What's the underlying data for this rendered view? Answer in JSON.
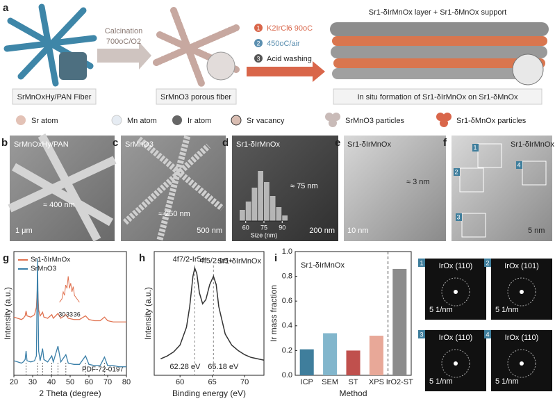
{
  "panel_letters": [
    "a",
    "b",
    "c",
    "d",
    "e",
    "f",
    "g",
    "h",
    "i"
  ],
  "schematic": {
    "step1_caption": "SrMnOxHy/PAN Fiber",
    "calcination": "Calcination",
    "calcination_condition": "700oC/O2",
    "step2_caption": "SrMnO3 porous fiber",
    "steps": [
      {
        "number": "1",
        "text": "K2IrCl6 90oC"
      },
      {
        "number": "2",
        "text": "450oC/air"
      },
      {
        "number": "3",
        "text": "Acid washing"
      }
    ],
    "product_title": "Sr1-δIrMnOx layer + Sr1-δMnOx support",
    "step3_caption": "In situ formation of Sr1-δIrMnOx on Sr1-δMnOx",
    "legend": [
      "Sr atom",
      "Mn atom",
      "Ir atom",
      "Sr vacancy",
      "SrMnO3 particles",
      "Sr1-δMnOx particles"
    ]
  },
  "micrographs": [
    {
      "sample": "SrMnOxHy/PAN",
      "size": "≈ 400 nm",
      "scale": "1 μm"
    },
    {
      "sample": "SrMnO3",
      "size": "≈ 250 nm",
      "scale": "500 nm"
    },
    {
      "sample": "Sr1-δIrMnOx",
      "size": "≈ 75 nm",
      "scale": "200 nm"
    },
    {
      "sample": "Sr1-δIrMnOx",
      "size": "≈ 3 nm",
      "scale": "10 nm"
    },
    {
      "sample": "Sr1-δIrMnOx",
      "scale": "5 nm",
      "regions": [
        "1",
        "2",
        "3",
        "4"
      ]
    }
  ],
  "fft": [
    {
      "number": "1",
      "plane": "IrOx (110)",
      "scale": "5 1/nm"
    },
    {
      "number": "2",
      "plane": "IrOx (101)",
      "scale": "5 1/nm"
    },
    {
      "number": "3",
      "plane": "IrOx (110)",
      "scale": "5 1/nm"
    },
    {
      "number": "4",
      "plane": "IrOx (110)",
      "scale": "5 1/nm"
    }
  ],
  "chart_data": [
    {
      "type": "histogram",
      "xlabel": "Size (nm)",
      "bins": [
        55,
        60,
        65,
        70,
        75,
        80,
        85,
        90,
        95
      ],
      "values": [
        0.2,
        0.35,
        0.6,
        0.9,
        0.7,
        0.45,
        0.25,
        0.1
      ],
      "xlim": [
        55,
        95
      ],
      "xticks": [
        60,
        75,
        90
      ],
      "ylim": [
        0,
        1
      ],
      "color": "#dcdcdc"
    },
    {
      "type": "line",
      "xlabel": "2 Theta (degree)",
      "ylabel": "Intensity (a.u.)",
      "xlim": [
        20,
        80
      ],
      "xticks": [
        20,
        30,
        40,
        50,
        60,
        70,
        80
      ],
      "ylim": [
        0,
        10.2
      ],
      "x": [
        20,
        22,
        24,
        25,
        26,
        26.5,
        27,
        29,
        31,
        32,
        32.6,
        33.2,
        34,
        35.3,
        36,
        38,
        40.2,
        41,
        43.5,
        45,
        47.7,
        49,
        52,
        55,
        58.2,
        60,
        63,
        66,
        68.3,
        70,
        73,
        76,
        80
      ],
      "series": [
        {
          "name": "Sr1-δIrMnOx",
          "color": "#e0714f",
          "values": [
            4.8,
            4.7,
            4.6,
            4.7,
            4.9,
            5.3,
            4.9,
            4.8,
            5.0,
            5.6,
            7.4,
            5.4,
            4.9,
            5.2,
            4.8,
            4.7,
            5.0,
            4.7,
            5.1,
            4.7,
            5.0,
            4.7,
            4.6,
            4.6,
            4.9,
            4.6,
            4.5,
            4.5,
            4.8,
            4.5,
            4.4,
            4.4,
            4.4
          ]
        },
        {
          "name": "SrMnO3",
          "color": "#3a7fa8",
          "values": [
            1.2,
            1.1,
            1.0,
            1.1,
            1.3,
            2.0,
            1.2,
            1.1,
            1.2,
            1.6,
            9.6,
            2.0,
            1.2,
            2.2,
            1.3,
            1.1,
            1.6,
            1.1,
            2.4,
            1.1,
            1.7,
            1.0,
            0.9,
            0.9,
            1.6,
            0.9,
            0.8,
            0.8,
            1.5,
            0.8,
            0.8,
            0.7,
            0.7
          ]
        }
      ],
      "reference_label": "PDF-72-0197",
      "reference_peaks": [
        26.5,
        32.6,
        35.3,
        40.2,
        43.5,
        47.7,
        58.2,
        68.3
      ],
      "inset": {
        "xlim": [
          28,
          38
        ],
        "xticks": [
          30,
          33,
          36
        ],
        "ylim": [
          0,
          1
        ],
        "x": [
          29,
          30,
          30.5,
          31,
          31.5,
          32,
          32.5,
          33,
          33.5,
          34,
          34.5,
          35,
          36,
          37
        ],
        "values": [
          0.2,
          0.3,
          0.5,
          0.4,
          0.7,
          0.6,
          0.95,
          0.6,
          0.75,
          0.5,
          0.65,
          0.4,
          0.3,
          0.2
        ]
      }
    },
    {
      "type": "line",
      "xlabel": "Binding energy (eV)",
      "ylabel": "Intensity (a.u.)",
      "annotation": "Sr1-δIrMnOx",
      "xlim": [
        56,
        73
      ],
      "xticks": [
        60,
        65,
        70
      ],
      "ylim": [
        0,
        0.9
      ],
      "color": "#333333",
      "x": [
        57,
        58,
        59,
        60,
        61,
        61.5,
        62,
        62.28,
        62.6,
        63,
        63.5,
        64,
        64.6,
        65.18,
        65.6,
        66,
        67,
        68,
        69,
        70,
        71,
        72,
        73
      ],
      "values": [
        0.12,
        0.14,
        0.17,
        0.22,
        0.35,
        0.5,
        0.72,
        0.78,
        0.74,
        0.6,
        0.52,
        0.55,
        0.66,
        0.72,
        0.66,
        0.5,
        0.3,
        0.22,
        0.18,
        0.15,
        0.13,
        0.12,
        0.11
      ],
      "peak_lines": [
        62.28,
        65.18
      ],
      "peak_labels": [
        "62.28 eV",
        "65.18 eV"
      ],
      "peak_names": [
        "4f7/2-Ir5+",
        "4f5/2-Ir5+"
      ]
    },
    {
      "type": "bar",
      "xlabel": "Method",
      "ylabel": "Ir mass fraction",
      "annotation": "Sr1-δIrMnOx",
      "categories": [
        "ICP",
        "SEM",
        "ST",
        "XPS",
        "IrO2-ST"
      ],
      "values": [
        0.21,
        0.34,
        0.2,
        0.32,
        0.86
      ],
      "colors": [
        "#3f7e9c",
        "#82b6cc",
        "#c0504d",
        "#e8a898",
        "#8c8c8c"
      ],
      "ylim": [
        0,
        1
      ],
      "yticks": [
        {
          "value": 0,
          "label": "0.0"
        },
        0.2,
        0.4,
        0.6,
        0.8,
        {
          "value": 1,
          "label": "1.0"
        }
      ]
    }
  ]
}
